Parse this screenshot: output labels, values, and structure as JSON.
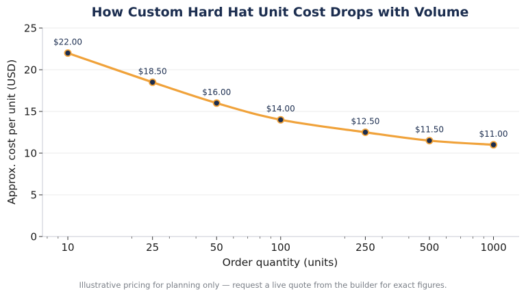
{
  "chart_data": {
    "type": "line",
    "title": "How Custom Hard Hat Unit Cost Drops with Volume",
    "xlabel": "Order quantity (units)",
    "ylabel": "Approx. cost per unit (USD)",
    "x_scale": "log",
    "x": [
      10,
      25,
      50,
      100,
      250,
      500,
      1000
    ],
    "x_tick_labels": [
      "10",
      "25",
      "50",
      "100",
      "250",
      "500",
      "1000"
    ],
    "y": [
      22.0,
      18.5,
      16.0,
      14.0,
      12.5,
      11.5,
      11.0
    ],
    "data_labels": [
      "$22.00",
      "$18.50",
      "$16.00",
      "$14.00",
      "$12.50",
      "$11.50",
      "$11.00"
    ],
    "ylim": [
      0,
      25
    ],
    "y_ticks": [
      0,
      5,
      10,
      15,
      20,
      25
    ],
    "grid": "horizontal",
    "legend": "none"
  },
  "footnote": "Illustrative pricing for planning only — request a live quote from the builder for exact figures.",
  "colors": {
    "line": "#f0a23a",
    "marker": "#1b2d4f",
    "title": "#1b2d4f",
    "grid": "#ebebeb",
    "axis": "#c8cbd6",
    "footnote": "#7a7f87"
  }
}
